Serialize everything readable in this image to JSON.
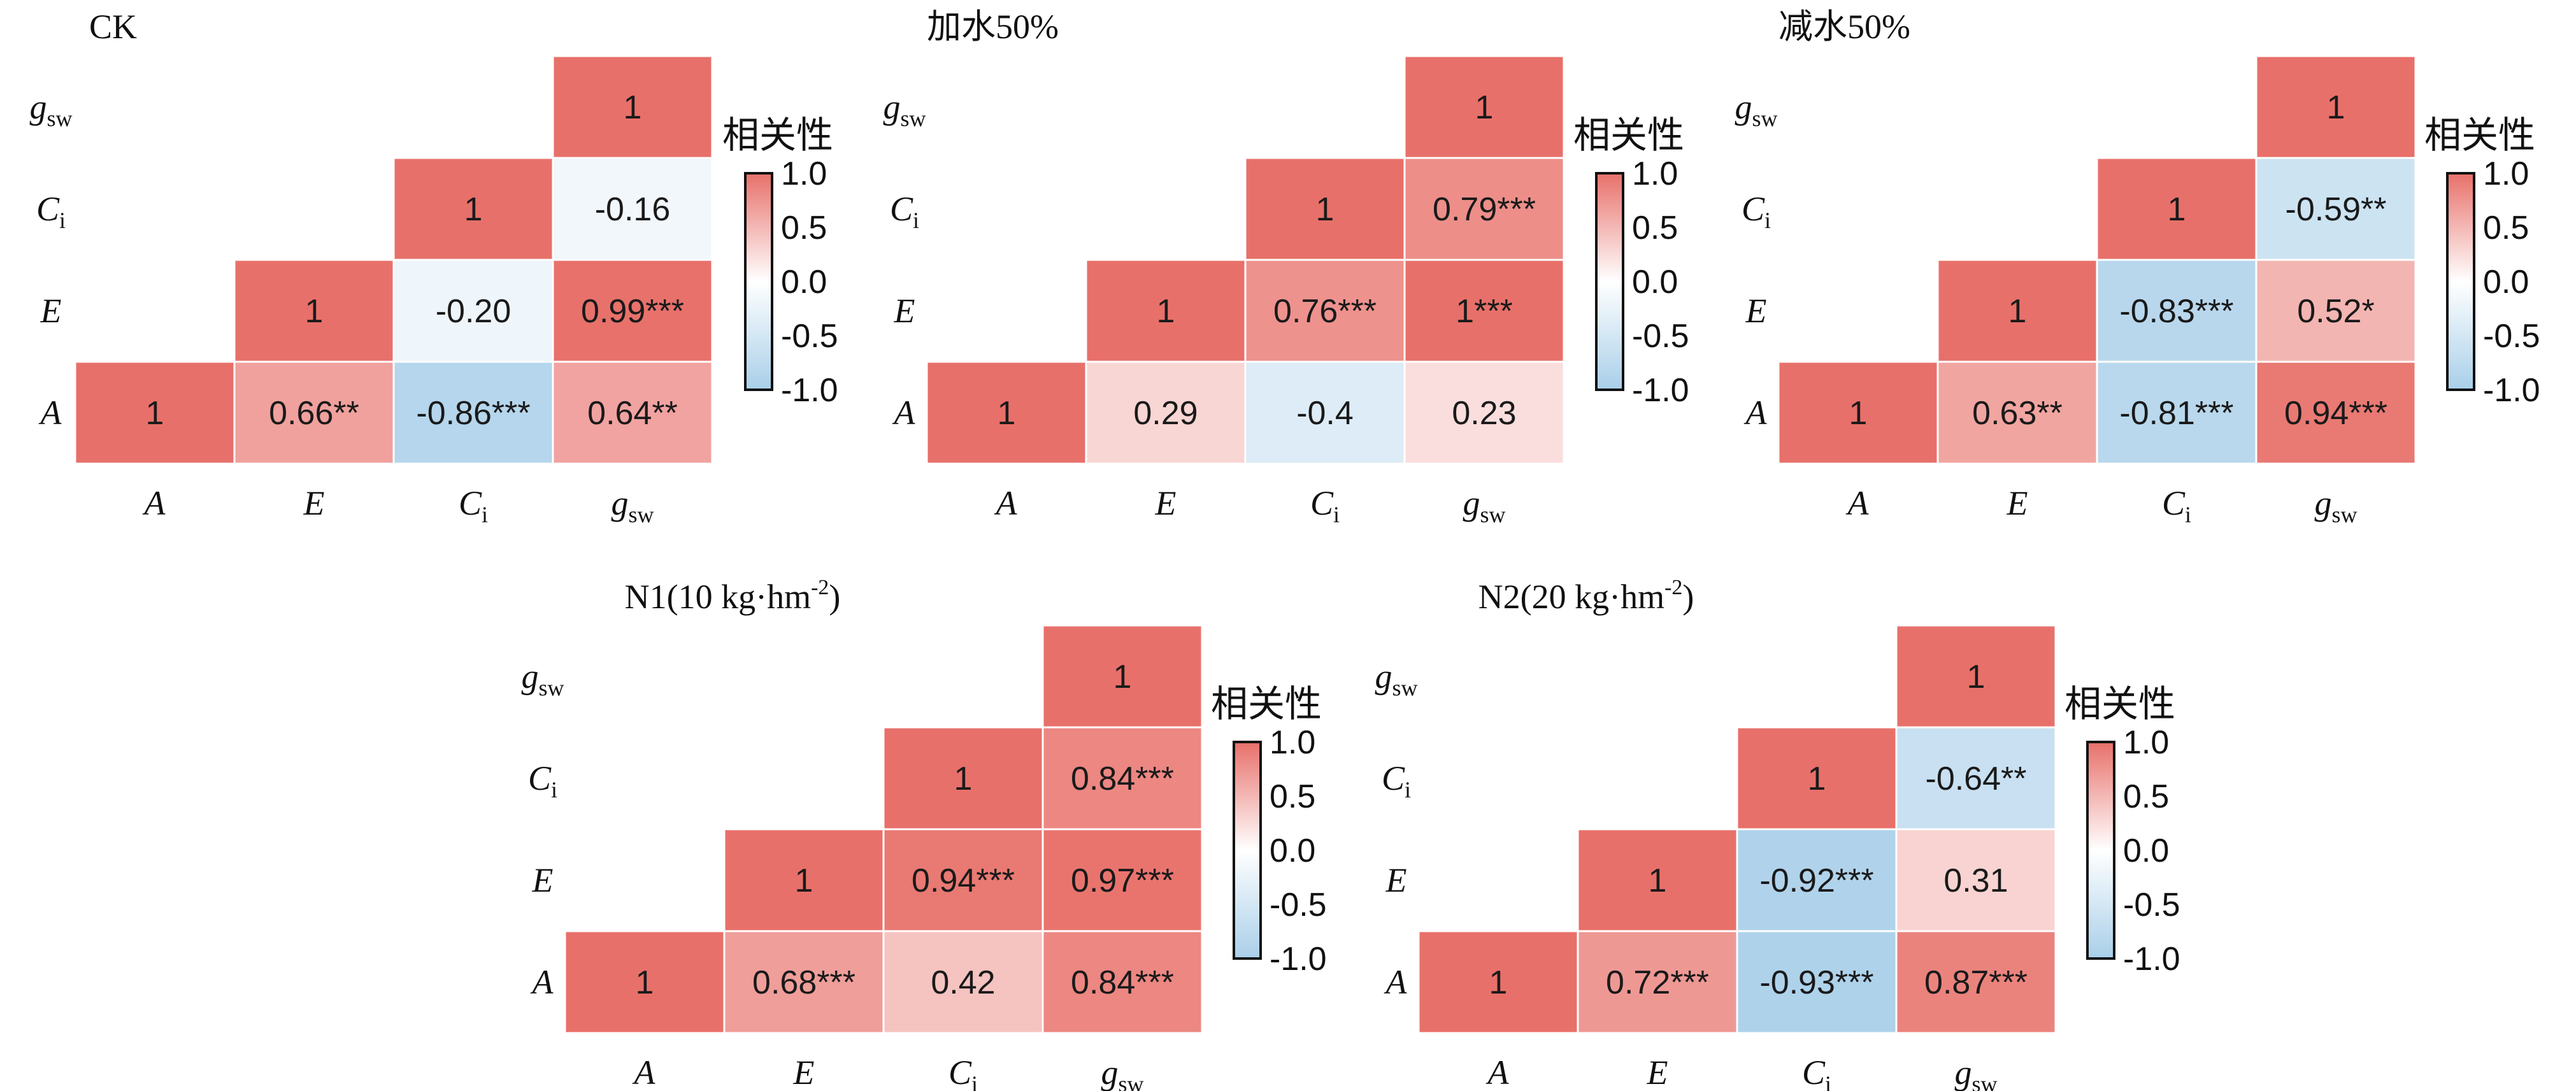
{
  "chart_data": [
    {
      "type": "heatmap",
      "title": "CK",
      "title_align": "left",
      "colorbar_title": "相关性",
      "colorbar_ticks": [
        "1.0",
        "0.5",
        "0.0",
        "-0.5",
        "-1.0"
      ],
      "vlim": [
        -1,
        1
      ],
      "variables": [
        {
          "base": "A",
          "sub": ""
        },
        {
          "base": "E",
          "sub": ""
        },
        {
          "base": "C",
          "sub": "i"
        },
        {
          "base": "g",
          "sub": "sw"
        }
      ],
      "matrix": [
        [
          1,
          0.66,
          -0.86,
          0.64
        ],
        [
          0.66,
          1,
          -0.2,
          0.99
        ],
        [
          -0.86,
          -0.2,
          1,
          -0.16
        ],
        [
          0.64,
          0.99,
          -0.16,
          1
        ]
      ],
      "labels": [
        [
          "1",
          "0.66**",
          "-0.86***",
          "0.64**"
        ],
        [
          "",
          "1",
          "-0.20",
          "0.99***"
        ],
        [
          "",
          "",
          "1",
          "-0.16"
        ],
        [
          "",
          "",
          "",
          "1"
        ]
      ]
    },
    {
      "type": "heatmap",
      "title": "加水50%",
      "title_align": "left",
      "colorbar_title": "相关性",
      "colorbar_ticks": [
        "1.0",
        "0.5",
        "0.0",
        "-0.5",
        "-1.0"
      ],
      "vlim": [
        -1,
        1
      ],
      "variables": [
        {
          "base": "A",
          "sub": ""
        },
        {
          "base": "E",
          "sub": ""
        },
        {
          "base": "C",
          "sub": "i"
        },
        {
          "base": "g",
          "sub": "sw"
        }
      ],
      "matrix": [
        [
          1,
          0.29,
          -0.4,
          0.23
        ],
        [
          0.29,
          1,
          0.76,
          1
        ],
        [
          -0.4,
          0.76,
          1,
          0.79
        ],
        [
          0.23,
          1,
          0.79,
          1
        ]
      ],
      "labels": [
        [
          "1",
          "0.29",
          "-0.4",
          "0.23"
        ],
        [
          "",
          "1",
          "0.76***",
          "1***"
        ],
        [
          "",
          "",
          "1",
          "0.79***"
        ],
        [
          "",
          "",
          "",
          "1"
        ]
      ]
    },
    {
      "type": "heatmap",
      "title": "减水50%",
      "title_align": "left",
      "colorbar_title": "相关性",
      "colorbar_ticks": [
        "1.0",
        "0.5",
        "0.0",
        "-0.5",
        "-1.0"
      ],
      "vlim": [
        -1,
        1
      ],
      "variables": [
        {
          "base": "A",
          "sub": ""
        },
        {
          "base": "E",
          "sub": ""
        },
        {
          "base": "C",
          "sub": "i"
        },
        {
          "base": "g",
          "sub": "sw"
        }
      ],
      "matrix": [
        [
          1,
          0.63,
          -0.81,
          0.94
        ],
        [
          0.63,
          1,
          -0.83,
          0.52
        ],
        [
          -0.81,
          -0.83,
          1,
          -0.59
        ],
        [
          0.94,
          0.52,
          -0.59,
          1
        ]
      ],
      "labels": [
        [
          "1",
          "0.63**",
          "-0.81***",
          "0.94***"
        ],
        [
          "",
          "1",
          "-0.83***",
          "0.52*"
        ],
        [
          "",
          "",
          "1",
          "-0.59**"
        ],
        [
          "",
          "",
          "",
          "1"
        ]
      ]
    },
    {
      "type": "heatmap",
      "title": "N1(10 kg·hm",
      "title_sup": "-2",
      "title_end": ")",
      "title_align": "center",
      "colorbar_title": "相关性",
      "colorbar_ticks": [
        "1.0",
        "0.5",
        "0.0",
        "-0.5",
        "-1.0"
      ],
      "vlim": [
        -1,
        1
      ],
      "variables": [
        {
          "base": "A",
          "sub": ""
        },
        {
          "base": "E",
          "sub": ""
        },
        {
          "base": "C",
          "sub": "i"
        },
        {
          "base": "g",
          "sub": "sw"
        }
      ],
      "matrix": [
        [
          1,
          0.68,
          0.42,
          0.84
        ],
        [
          0.68,
          1,
          0.94,
          0.97
        ],
        [
          0.42,
          0.94,
          1,
          0.84
        ],
        [
          0.84,
          0.97,
          0.84,
          1
        ]
      ],
      "labels": [
        [
          "1",
          "0.68***",
          "0.42",
          "0.84***"
        ],
        [
          "",
          "1",
          "0.94***",
          "0.97***"
        ],
        [
          "",
          "",
          "1",
          "0.84***"
        ],
        [
          "",
          "",
          "",
          "1"
        ]
      ]
    },
    {
      "type": "heatmap",
      "title": "N2(20 kg·hm",
      "title_sup": "-2",
      "title_end": ")",
      "title_align": "center",
      "colorbar_title": "相关性",
      "colorbar_ticks": [
        "1.0",
        "0.5",
        "0.0",
        "-0.5",
        "-1.0"
      ],
      "vlim": [
        -1,
        1
      ],
      "variables": [
        {
          "base": "A",
          "sub": ""
        },
        {
          "base": "E",
          "sub": ""
        },
        {
          "base": "C",
          "sub": "i"
        },
        {
          "base": "g",
          "sub": "sw"
        }
      ],
      "matrix": [
        [
          1,
          0.72,
          -0.93,
          0.87
        ],
        [
          0.72,
          1,
          -0.92,
          0.31
        ],
        [
          -0.93,
          -0.92,
          1,
          -0.64
        ],
        [
          0.87,
          0.31,
          -0.64,
          1
        ]
      ],
      "labels": [
        [
          "1",
          "0.72***",
          "-0.93***",
          "0.87***"
        ],
        [
          "",
          "1",
          "-0.92***",
          "0.31"
        ],
        [
          "",
          "",
          "1",
          "-0.64**"
        ],
        [
          "",
          "",
          "",
          "1"
        ]
      ]
    }
  ],
  "colors": {
    "positive": "#e8706a",
    "neutral": "#ffffff",
    "negative": "#a9cfe9",
    "cell_border": "#ffffff",
    "colorbar_border": "#111111"
  }
}
